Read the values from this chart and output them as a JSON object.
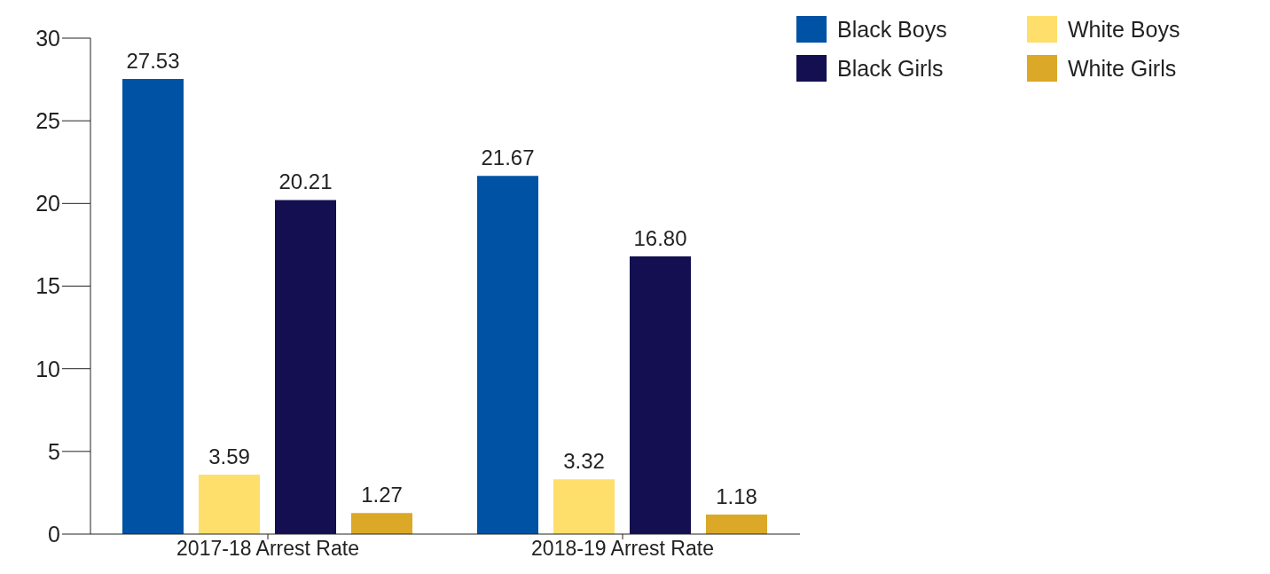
{
  "chart_data": {
    "type": "bar",
    "categories": [
      "2017-18 Arrest Rate",
      "2018-19 Arrest Rate"
    ],
    "series": [
      {
        "name": "Black Boys",
        "color": "#0052a5",
        "values": [
          27.53,
          21.67
        ]
      },
      {
        "name": "White Boys",
        "color": "#ffdf6b",
        "values": [
          3.59,
          3.32
        ]
      },
      {
        "name": "Black Girls",
        "color": "#140f50",
        "values": [
          20.21,
          16.8
        ]
      },
      {
        "name": "White Girls",
        "color": "#dba827",
        "values": [
          1.27,
          1.18
        ]
      }
    ],
    "value_labels": [
      [
        "27.53",
        "21.67"
      ],
      [
        "3.59",
        "3.32"
      ],
      [
        "20.21",
        "16.80"
      ],
      [
        "1.27",
        "1.18"
      ]
    ],
    "ylim": [
      0,
      30
    ],
    "yticks": [
      0,
      5,
      10,
      15,
      20,
      25,
      30
    ],
    "grid": false,
    "legend": "top right"
  }
}
